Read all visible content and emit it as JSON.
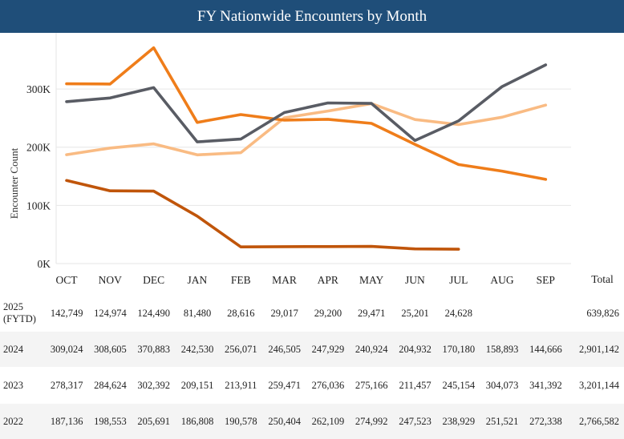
{
  "chart_data": {
    "type": "line",
    "title": "FY Nationwide Encounters by Month",
    "ylabel": "Encounter Count",
    "xlabel": "",
    "ylim": [
      0,
      380000
    ],
    "yticks": [
      0,
      100000,
      200000,
      300000
    ],
    "ytick_labels": [
      "0K",
      "100K",
      "200K",
      "300K"
    ],
    "categories": [
      "OCT",
      "NOV",
      "DEC",
      "JAN",
      "FEB",
      "MAR",
      "APR",
      "MAY",
      "JUN",
      "JUL",
      "AUG",
      "SEP"
    ],
    "total_header": "Total",
    "grid": true,
    "series": [
      {
        "name": "2025 (FYTD)",
        "label_lines": [
          "2025",
          "(FYTD)"
        ],
        "color": "#c0550a",
        "values": [
          142749,
          124974,
          124490,
          81480,
          28616,
          29017,
          29200,
          29471,
          25201,
          24628,
          null,
          null
        ],
        "display": [
          "142,749",
          "124,974",
          "124,490",
          "81,480",
          "28,616",
          "29,017",
          "29,200",
          "29,471",
          "25,201",
          "24,628",
          "",
          ""
        ],
        "total": "639,826"
      },
      {
        "name": "2024",
        "label_lines": [
          "2024"
        ],
        "color": "#ef7d1a",
        "values": [
          309024,
          308605,
          370883,
          242530,
          256071,
          246505,
          247929,
          240924,
          204932,
          170180,
          158893,
          144666
        ],
        "display": [
          "309,024",
          "308,605",
          "370,883",
          "242,530",
          "256,071",
          "246,505",
          "247,929",
          "240,924",
          "204,932",
          "170,180",
          "158,893",
          "144,666"
        ],
        "total": "2,901,142"
      },
      {
        "name": "2023",
        "label_lines": [
          "2023"
        ],
        "color": "#595c64",
        "values": [
          278317,
          284624,
          302392,
          209151,
          213911,
          259471,
          276036,
          275166,
          211457,
          245154,
          304073,
          341392
        ],
        "display": [
          "278,317",
          "284,624",
          "302,392",
          "209,151",
          "213,911",
          "259,471",
          "276,036",
          "275,166",
          "211,457",
          "245,154",
          "304,073",
          "341,392"
        ],
        "total": "3,201,144"
      },
      {
        "name": "2022",
        "label_lines": [
          "2022"
        ],
        "color": "#f9bb83",
        "values": [
          187136,
          198553,
          205691,
          186808,
          190578,
          250404,
          262109,
          274992,
          247523,
          238929,
          251521,
          272338
        ],
        "display": [
          "187,136",
          "198,553",
          "205,691",
          "186,808",
          "190,578",
          "250,404",
          "262,109",
          "274,992",
          "247,523",
          "238,929",
          "251,521",
          "272,338"
        ],
        "total": "2,766,582"
      }
    ],
    "draw_order": [
      3,
      1,
      2,
      0
    ],
    "table_order": [
      0,
      1,
      2,
      3
    ]
  }
}
